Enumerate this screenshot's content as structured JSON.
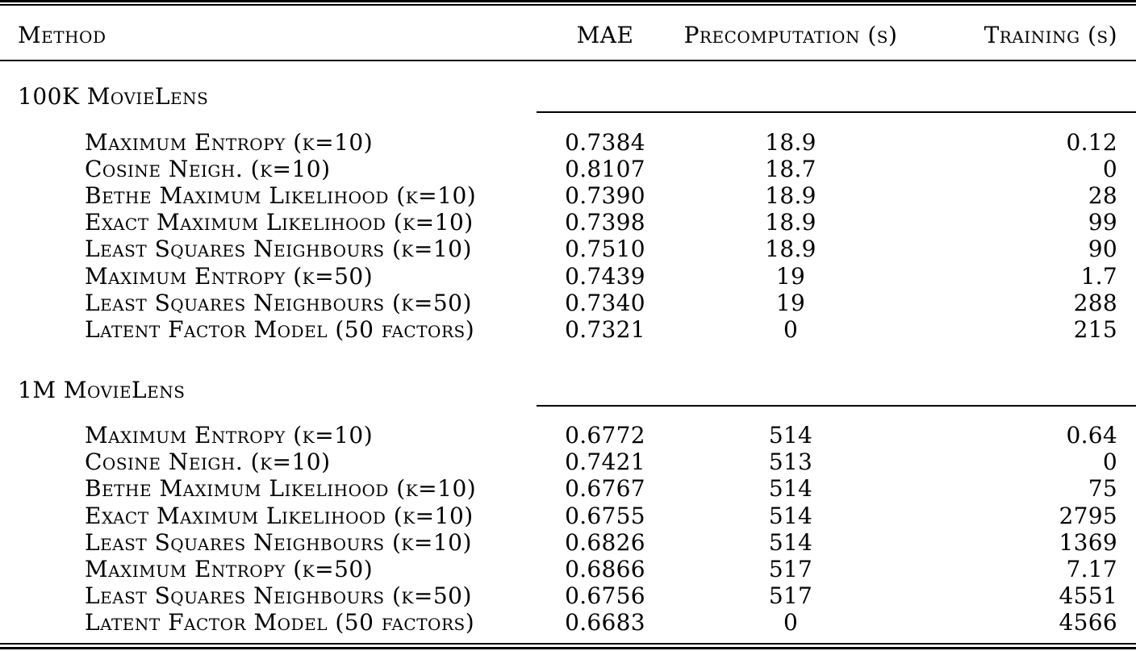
{
  "table": {
    "columns": [
      "Method",
      "MAE",
      "Precomputation (s)",
      "Training (s)"
    ],
    "sections": [
      {
        "label": "100K MovieLens",
        "rows": [
          {
            "method": "Maximum Entropy (k=10)",
            "mae": "0.7384",
            "precomputation": "18.9",
            "training": "0.12"
          },
          {
            "method": "Cosine Neigh. (k=10)",
            "mae": "0.8107",
            "precomputation": "18.7",
            "training": "0"
          },
          {
            "method": "Bethe Maximum Likelihood (k=10)",
            "mae": "0.7390",
            "precomputation": "18.9",
            "training": "28"
          },
          {
            "method": "Exact Maximum Likelihood (k=10)",
            "mae": "0.7398",
            "precomputation": "18.9",
            "training": "99"
          },
          {
            "method": "Least Squares Neighbours (k=10)",
            "mae": "0.7510",
            "precomputation": "18.9",
            "training": "90"
          },
          {
            "method": "Maximum Entropy (k=50)",
            "mae": "0.7439",
            "precomputation": "19",
            "training": "1.7"
          },
          {
            "method": "Least Squares Neighbours (k=50)",
            "mae": "0.7340",
            "precomputation": "19",
            "training": "288"
          },
          {
            "method": "Latent Factor Model (50 factors)",
            "mae": "0.7321",
            "precomputation": "0",
            "training": "215"
          }
        ]
      },
      {
        "label": "1M MovieLens",
        "rows": [
          {
            "method": "Maximum Entropy (k=10)",
            "mae": "0.6772",
            "precomputation": "514",
            "training": "0.64"
          },
          {
            "method": "Cosine Neigh. (k=10)",
            "mae": "0.7421",
            "precomputation": "513",
            "training": "0"
          },
          {
            "method": "Bethe Maximum Likelihood (k=10)",
            "mae": "0.6767",
            "precomputation": "514",
            "training": "75"
          },
          {
            "method": "Exact Maximum Likelihood (k=10)",
            "mae": "0.6755",
            "precomputation": "514",
            "training": "2795"
          },
          {
            "method": "Least Squares Neighbours (k=10)",
            "mae": "0.6826",
            "precomputation": "514",
            "training": "1369"
          },
          {
            "method": "Maximum Entropy (k=50)",
            "mae": "0.6866",
            "precomputation": "517",
            "training": "7.17"
          },
          {
            "method": "Least Squares Neighbours (k=50)",
            "mae": "0.6756",
            "precomputation": "517",
            "training": "4551"
          },
          {
            "method": "Latent Factor Model (50 factors)",
            "mae": "0.6683",
            "precomputation": "0",
            "training": "4566"
          }
        ]
      }
    ],
    "colors": {
      "text": "#000000",
      "background": "#ffffff",
      "rule": "#000000"
    }
  }
}
